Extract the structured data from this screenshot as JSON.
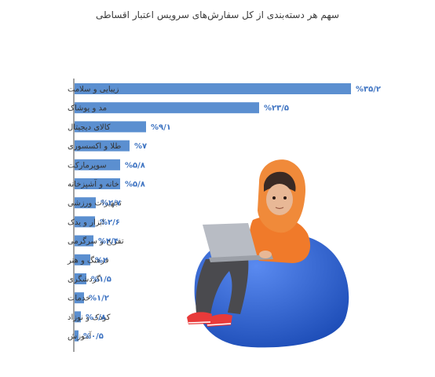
{
  "chart_data": {
    "type": "bar",
    "orientation": "horizontal",
    "title": "سهم هر دسته‌بندی از کل سفارش‌های سرویس اعتبار اقساطی",
    "categories": [
      "زیبایی و سلامت",
      "مد و پوشاک",
      "کالای دیجیتال",
      "طلا و اکسسوری",
      "سوپرمارکت",
      "خانه و آشپزخانه",
      "تجهیزات ورزشی",
      "ابزار و یدک",
      "تفریح و سرگرمی",
      "فرهنگ و هنر",
      "گردشگری",
      "خدمات",
      "کودک و نوزاد",
      "آموزش"
    ],
    "values": [
      35.2,
      23.5,
      9.1,
      7,
      5.8,
      5.8,
      2.7,
      2.6,
      2.4,
      2,
      1.5,
      1.2,
      0.8,
      0.5
    ],
    "value_labels": [
      "%۳۵/۲",
      "%۲۳/۵",
      "%۹/۱",
      "%۷",
      "%۵/۸",
      "%۵/۸",
      "%۲/۷",
      "%۲/۶",
      "%۲/۴",
      "%۲",
      "%۱/۵",
      "%۱/۲",
      "%۰/۸",
      "%۰/۵"
    ],
    "grid": false,
    "legend": "none",
    "colors": {
      "bar": "#5b8fd0",
      "value_text": "#3f74c2",
      "axis": "#444444"
    }
  },
  "illustration": {
    "description_icon": "person-on-beanbag-with-laptop",
    "colors": {
      "beanbag": "#2f62c8",
      "hijab": "#f08a3a",
      "jacket": "#f07a2a",
      "pants": "#4a4a4e",
      "laptop": "#b8bcc4",
      "shoes": "#e83a3a",
      "skin": "#e8b896",
      "hair": "#3a2a24"
    }
  }
}
